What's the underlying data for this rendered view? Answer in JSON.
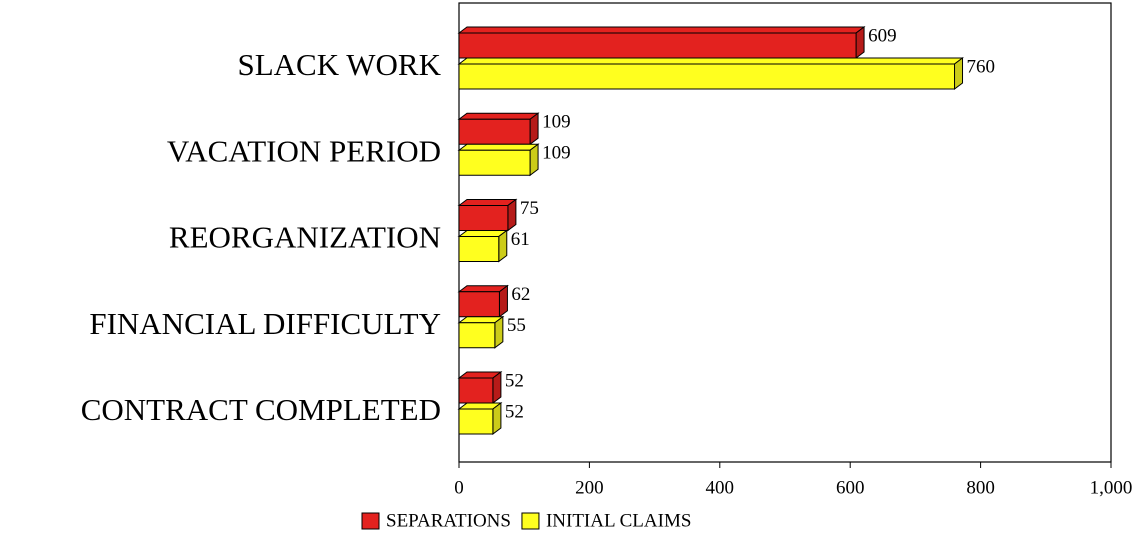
{
  "chart_data": {
    "type": "hbar3d",
    "categories": [
      "SLACK WORK",
      "VACATION PERIOD",
      "REORGANIZATION",
      "FINANCIAL DIFFICULTY",
      "CONTRACT COMPLETED"
    ],
    "series": [
      {
        "name": "SEPARATIONS",
        "color": "#e3221f",
        "values": [
          609,
          109,
          75,
          62,
          52
        ]
      },
      {
        "name": "INITIAL CLAIMS",
        "color": "#ffff1f",
        "values": [
          760,
          109,
          61,
          55,
          52
        ]
      }
    ],
    "xlim": [
      0,
      1000
    ],
    "xticks": [
      0,
      200,
      400,
      600,
      800,
      {
        "value": 1000,
        "label": "1,000"
      }
    ],
    "legend": "bottom"
  }
}
